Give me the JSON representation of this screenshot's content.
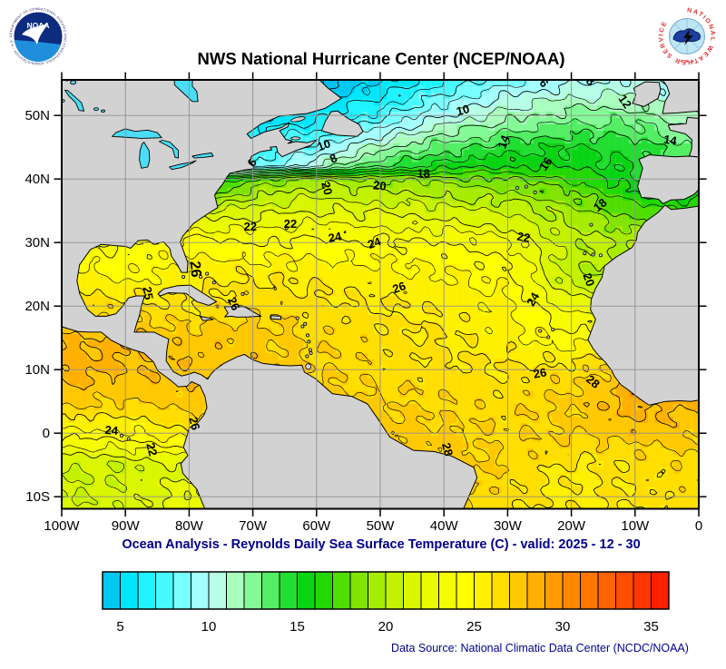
{
  "header": {
    "title": "NWS National Hurricane Center (NCEP/NOAA)"
  },
  "logos": {
    "noaa": {
      "text": "NOAA",
      "ring_text": "NATIONAL OCEANIC AND ATMOSPHERIC ADMINISTRATION - U.S. DEPARTMENT OF COMMERCE"
    },
    "nws": {
      "ring_text": "NATIONAL WEATHER SERVICE",
      "stars": "★ ★ ★"
    }
  },
  "caption": "Ocean Analysis - Reynolds Daily Sea Surface Temperature (C) - valid: 2025 - 12 - 30",
  "source": "Data Source: National Climatic Data Center (NCDC/NOAA)",
  "map": {
    "lat_ticks": [
      {
        "label": "50N",
        "lat": 50
      },
      {
        "label": "40N",
        "lat": 40
      },
      {
        "label": "30N",
        "lat": 30
      },
      {
        "label": "20N",
        "lat": 20
      },
      {
        "label": "10N",
        "lat": 10
      },
      {
        "label": "0",
        "lat": 0
      },
      {
        "label": "10S",
        "lat": -10
      }
    ],
    "lon_ticks": [
      {
        "label": "100W",
        "lon": -100
      },
      {
        "label": "90W",
        "lon": -90
      },
      {
        "label": "80W",
        "lon": -80
      },
      {
        "label": "70W",
        "lon": -70
      },
      {
        "label": "60W",
        "lon": -60
      },
      {
        "label": "50W",
        "lon": -50
      },
      {
        "label": "40W",
        "lon": -40
      },
      {
        "label": "30W",
        "lon": -30
      },
      {
        "label": "20W",
        "lon": -20
      },
      {
        "label": "10W",
        "lon": -10
      },
      {
        "label": "0",
        "lon": 0
      }
    ],
    "colors": {
      "land": "#D2D2D2",
      "lake": "#4ADDF5",
      "grid": "#909090",
      "frame": "#000000"
    },
    "contour_labels": [
      {
        "t": "6",
        "lon": -70.0,
        "lat": 42.5,
        "rot": -60
      },
      {
        "t": "8",
        "lon": -57.3,
        "lat": 43.1,
        "rot": -25
      },
      {
        "t": "10",
        "lon": -58.8,
        "lat": 45.2,
        "rot": -20
      },
      {
        "t": "10",
        "lon": -37.0,
        "lat": 50.7,
        "rot": -15
      },
      {
        "t": "6",
        "lon": -24.4,
        "lat": 55.0,
        "rot": 50
      },
      {
        "t": "8",
        "lon": -17.1,
        "lat": 55.3,
        "rot": 45
      },
      {
        "t": "12",
        "lon": -11.7,
        "lat": 52.1,
        "rot": 55
      },
      {
        "t": "14",
        "lon": -30.5,
        "lat": 45.8,
        "rot": -70
      },
      {
        "t": "14",
        "lon": -4.5,
        "lat": 46.0,
        "rot": 10
      },
      {
        "t": "16",
        "lon": -23.9,
        "lat": 42.3,
        "rot": -55
      },
      {
        "t": "18",
        "lon": -43.2,
        "lat": 40.7,
        "rot": 0
      },
      {
        "t": "18",
        "lon": -15.4,
        "lat": 35.8,
        "rot": -40
      },
      {
        "t": "20",
        "lon": -58.5,
        "lat": 38.5,
        "rot": 75
      },
      {
        "t": "20",
        "lon": -50.1,
        "lat": 38.8,
        "rot": 5
      },
      {
        "t": "20",
        "lon": -17.4,
        "lat": 24.1,
        "rot": 70
      },
      {
        "t": "22",
        "lon": -70.4,
        "lat": 32.4,
        "rot": 0
      },
      {
        "t": "22",
        "lon": -64.1,
        "lat": 32.8,
        "rot": 0
      },
      {
        "t": "22",
        "lon": -27.5,
        "lat": 30.7,
        "rot": 10
      },
      {
        "t": "24",
        "lon": -57.1,
        "lat": 30.7,
        "rot": -10
      },
      {
        "t": "24",
        "lon": -50.9,
        "lat": 29.8,
        "rot": -20
      },
      {
        "t": "24",
        "lon": -25.9,
        "lat": 21.0,
        "rot": -60
      },
      {
        "t": "26",
        "lon": -79.1,
        "lat": 25.8,
        "rot": 85,
        "big": true
      },
      {
        "t": "25",
        "lon": -86.6,
        "lat": 22.0,
        "rot": 80
      },
      {
        "t": "26",
        "lon": -73.1,
        "lat": 20.3,
        "rot": 65
      },
      {
        "t": "26",
        "lon": -47.0,
        "lat": 22.8,
        "rot": -20
      },
      {
        "t": "26",
        "lon": -24.9,
        "lat": 9.3,
        "rot": -10
      },
      {
        "t": "28",
        "lon": -16.7,
        "lat": 8.0,
        "rot": 40
      },
      {
        "t": "28",
        "lon": -39.6,
        "lat": -2.6,
        "rot": 75
      },
      {
        "t": "24",
        "lon": -92.2,
        "lat": 0.3,
        "rot": 5
      },
      {
        "t": "22",
        "lon": -86.0,
        "lat": -2.6,
        "rot": 75
      },
      {
        "t": "26",
        "lon": -79.3,
        "lat": 1.5,
        "rot": 75
      }
    ]
  },
  "chart_data": {
    "type": "heatmap",
    "subtype": "filled-contour sea surface temperature map",
    "title": "NWS National Hurricane Center (NCEP/NOAA)",
    "xlabel": "Longitude",
    "ylabel": "Latitude",
    "bounds": {
      "lon": [
        -100,
        0
      ],
      "lat": [
        -11.9,
        55.6
      ]
    },
    "contours": {
      "solid_levels_c": [
        4,
        6,
        8,
        10,
        12,
        14,
        16,
        18,
        20,
        22,
        24,
        26,
        28,
        30
      ],
      "dashed_levels_c": [
        5,
        7,
        9,
        11,
        13,
        15,
        17,
        19,
        21,
        23,
        25,
        27,
        29
      ]
    },
    "colorbar_ticks": [
      5,
      10,
      15,
      20,
      25,
      30,
      35
    ],
    "colormap": {
      "min_c": 3,
      "max_c": 36,
      "colors": [
        "#00BEEF",
        "#00C8F0",
        "#00E6FA",
        "#20F2FF",
        "#48FAFF",
        "#78FFFF",
        "#A4FFFF",
        "#B6FFE6",
        "#AAFFBE",
        "#84FA96",
        "#54EE64",
        "#22DE32",
        "#08D414",
        "#22D800",
        "#50DE00",
        "#80E400",
        "#A6EC00",
        "#C2F200",
        "#DAF600",
        "#EAFA00",
        "#F6FC00",
        "#FFFF00",
        "#FFF000",
        "#FFDE00",
        "#FFC800",
        "#FFB000",
        "#FF9A00",
        "#FF8800",
        "#FF7600",
        "#FF6200",
        "#FF4E00",
        "#FF3600",
        "#FF2000",
        "#FF1408"
      ]
    },
    "sst_grid": {
      "lats": [
        57,
        50,
        45,
        42,
        40,
        35,
        30,
        25,
        20,
        15,
        10,
        5,
        0,
        -5,
        -12
      ],
      "lons": [
        -100,
        -90,
        -80,
        -70,
        -60,
        -50,
        -40,
        -30,
        -20,
        -10,
        0
      ],
      "values_c": [
        [
          3,
          3,
          3,
          3,
          3,
          4,
          6,
          8,
          9,
          9.5,
          9
        ],
        [
          5,
          5,
          5,
          5,
          5.5,
          7.5,
          10,
          11.5,
          12.5,
          12.5,
          11
        ],
        [
          8,
          8,
          8,
          7,
          8.5,
          11.5,
          13.5,
          14.5,
          15,
          14.5,
          13
        ],
        [
          10,
          10,
          10,
          8,
          11,
          14,
          15.5,
          16,
          15.8,
          14.8,
          13.5
        ],
        [
          12,
          12,
          13,
          18,
          19.5,
          19,
          18.5,
          18,
          17,
          15,
          14
        ],
        [
          20,
          20,
          21,
          21.5,
          22,
          21.8,
          21.3,
          20.8,
          19.3,
          17.5,
          17
        ],
        [
          24,
          24,
          24.5,
          24,
          24.3,
          24.2,
          24,
          23.2,
          20.5,
          19.8,
          19.5
        ],
        [
          25.5,
          24.6,
          25.5,
          25.8,
          25.6,
          25.4,
          25.1,
          24.5,
          20.2,
          19.6,
          21
        ],
        [
          27,
          26.5,
          26,
          26.9,
          26.3,
          26,
          25.7,
          25.2,
          22.5,
          23.5,
          23.5
        ],
        [
          28,
          28,
          27.5,
          27.4,
          26.8,
          26.4,
          26,
          25.5,
          24.3,
          25.8,
          25.5
        ],
        [
          28.5,
          28,
          27.8,
          27.5,
          27,
          26.6,
          26.3,
          26,
          26.5,
          27.8,
          27
        ],
        [
          27.5,
          27,
          27.6,
          27.7,
          27.3,
          27,
          26.8,
          26.5,
          27.3,
          28.6,
          28.2
        ],
        [
          24.6,
          24.8,
          25.8,
          27.2,
          27.5,
          27.4,
          27.2,
          26.8,
          27.1,
          27.4,
          27.4
        ],
        [
          21,
          21,
          22,
          27,
          27.8,
          28.3,
          27.6,
          26.8,
          25.8,
          26.3,
          26.8
        ],
        [
          21,
          21.5,
          22.5,
          25,
          27.4,
          27.8,
          27.1,
          26.2,
          25.7,
          26.1,
          26.4
        ]
      ]
    }
  }
}
